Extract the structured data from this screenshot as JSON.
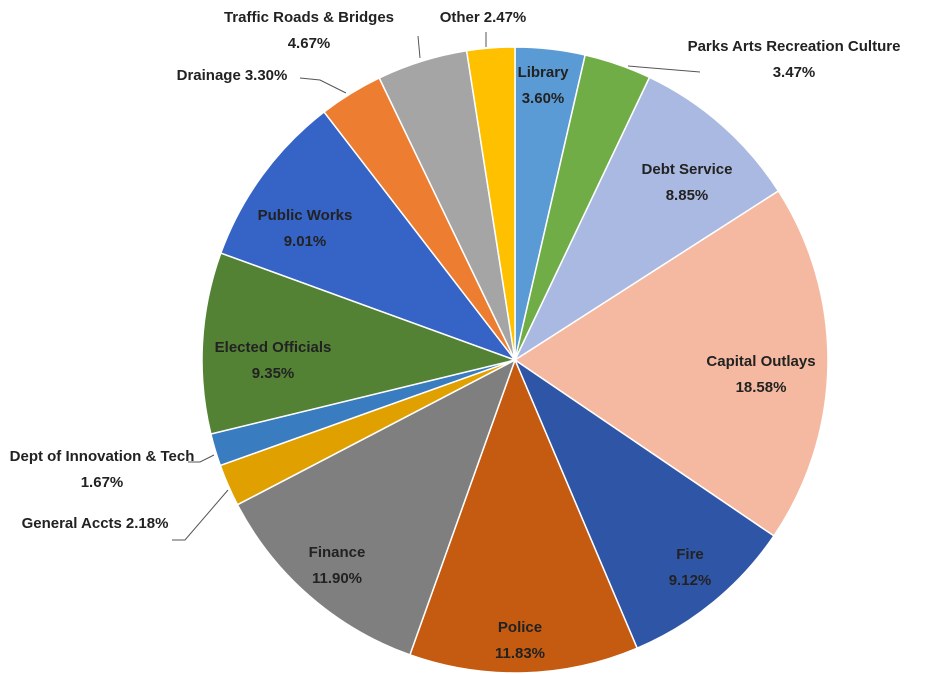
{
  "chart_data": {
    "type": "pie",
    "categories": [
      "Library",
      "Parks Arts Recreation Culture",
      "Debt Service",
      "Capital Outlays",
      "Fire",
      "Police",
      "Finance",
      "General Accts",
      "Dept of Innovation & Tech",
      "Elected Officials",
      "Public Works",
      "Drainage",
      "Traffic Roads & Bridges",
      "Other"
    ],
    "values": [
      3.6,
      3.47,
      8.85,
      18.58,
      9.12,
      11.83,
      11.9,
      2.18,
      1.67,
      9.35,
      9.01,
      3.3,
      4.67,
      2.47
    ],
    "value_labels": [
      "3.60%",
      "3.47%",
      "8.85%",
      "18.58%",
      "9.12%",
      "11.83%",
      "11.90%",
      "2.18%",
      "1.67%",
      "9.35%",
      "9.01%",
      "3.30%",
      "4.67%",
      "2.47%"
    ],
    "colors": [
      "#5b9bd5",
      "#70ad47",
      "#aab9e1",
      "#f5b9a1",
      "#2f56a6",
      "#c55a11",
      "#7f7f7f",
      "#e0a100",
      "#3a7cc0",
      "#548235",
      "#3563c6",
      "#ed7d31",
      "#a5a5a5",
      "#ffc000"
    ]
  }
}
